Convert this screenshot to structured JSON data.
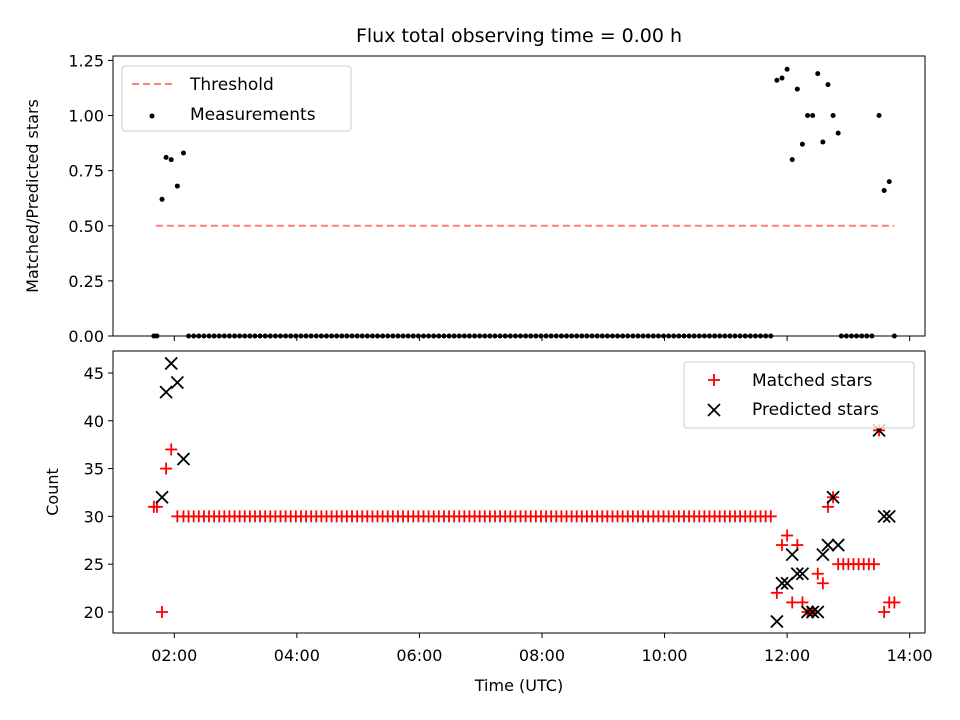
{
  "title": "Flux total observing time = 0.00 h",
  "chart_data": [
    {
      "type": "scatter",
      "ylabel": "Matched/Predicted stars",
      "xlabel": "",
      "xlim": [
        "01:00",
        "14:15"
      ],
      "ylim": [
        0,
        1.27
      ],
      "yticks": [
        0,
        0.25,
        0.5,
        0.75,
        1.0,
        1.25
      ],
      "ytick_labels": [
        "0.00",
        "0.25",
        "0.50",
        "0.75",
        "1.00",
        "1.25"
      ],
      "legend_position": "upper left",
      "legend": [
        {
          "label": "Threshold",
          "marker": "dashed-line",
          "color": "#ff7f7f"
        },
        {
          "label": "Measurements",
          "marker": "dot",
          "color": "#000000"
        }
      ],
      "threshold": {
        "y": 0.5,
        "x_start": "01:42",
        "x_end": "13:45"
      },
      "measurements": {
        "x": [
          "01:40",
          "01:43",
          "01:48",
          "01:52",
          "01:57",
          "02:03",
          "02:09",
          "11:50",
          "11:55",
          "12:00",
          "12:05",
          "12:10",
          "12:15",
          "12:20",
          "12:25",
          "12:30",
          "12:35",
          "12:40",
          "12:45",
          "12:50",
          "13:30",
          "13:35",
          "13:40"
        ],
        "y": [
          0,
          0,
          0.62,
          0.81,
          0.8,
          0.68,
          0.83,
          1.16,
          1.17,
          1.21,
          0.8,
          1.12,
          0.87,
          1.0,
          1.0,
          1.19,
          0.88,
          1.14,
          1.0,
          0.92,
          1.0,
          0.66,
          0.7
        ]
      },
      "zero_measurements": {
        "x_start": "02:14",
        "x_end": "11:44",
        "step_minutes": 5,
        "y": 0
      },
      "zero_measurements_late": {
        "x": [
          "12:53",
          "12:58",
          "13:03",
          "13:08",
          "13:13",
          "13:18",
          "13:23",
          "13:45"
        ],
        "y": [
          0,
          0,
          0,
          0,
          0,
          0,
          0,
          0
        ]
      }
    },
    {
      "type": "scatter",
      "ylabel": "Count",
      "xlabel": "Time (UTC)",
      "xlim": [
        "01:00",
        "14:15"
      ],
      "ylim": [
        17.8,
        47.3
      ],
      "yticks": [
        20,
        25,
        30,
        35,
        40,
        45
      ],
      "ytick_labels": [
        "20",
        "25",
        "30",
        "35",
        "40",
        "45"
      ],
      "xticks": [
        "02:00",
        "04:00",
        "06:00",
        "08:00",
        "10:00",
        "12:00",
        "14:00"
      ],
      "legend_position": "upper right",
      "legend": [
        {
          "label": "Matched stars",
          "marker": "plus",
          "color": "#ff0000"
        },
        {
          "label": "Predicted stars",
          "marker": "x",
          "color": "#000000"
        }
      ],
      "series": [
        {
          "name": "Matched stars",
          "x": [
            "01:40",
            "01:43",
            "01:48",
            "01:52",
            "01:57",
            "02:03",
            "02:09",
            "11:50",
            "11:55",
            "12:00",
            "12:05",
            "12:10",
            "12:15",
            "12:20",
            "12:25",
            "12:30",
            "12:35",
            "12:40",
            "12:45",
            "12:50",
            "12:55",
            "13:00",
            "13:05",
            "13:10",
            "13:15",
            "13:20",
            "13:25",
            "13:30",
            "13:35",
            "13:40",
            "13:45"
          ],
          "y": [
            31,
            31,
            20,
            35,
            37,
            30,
            30,
            22,
            27,
            28,
            21,
            27,
            21,
            20,
            20,
            24,
            23,
            31,
            32,
            25,
            25,
            25,
            25,
            25,
            25,
            25,
            25,
            39,
            20,
            21,
            21
          ]
        },
        {
          "name": "Predicted stars",
          "x": [
            "01:48",
            "01:52",
            "01:57",
            "02:03",
            "02:09",
            "11:50",
            "11:55",
            "12:00",
            "12:05",
            "12:10",
            "12:15",
            "12:20",
            "12:25",
            "12:30",
            "12:35",
            "12:40",
            "12:45",
            "12:50",
            "13:30",
            "13:35",
            "13:40"
          ],
          "y": [
            32,
            43,
            46,
            44,
            36,
            19,
            23,
            23,
            26,
            24,
            24,
            20,
            20,
            20,
            26,
            27,
            32,
            27,
            39,
            30,
            30
          ]
        }
      ],
      "matched_constant": {
        "x_start": "02:14",
        "x_end": "11:44",
        "step_minutes": 5,
        "y": 30
      }
    }
  ]
}
